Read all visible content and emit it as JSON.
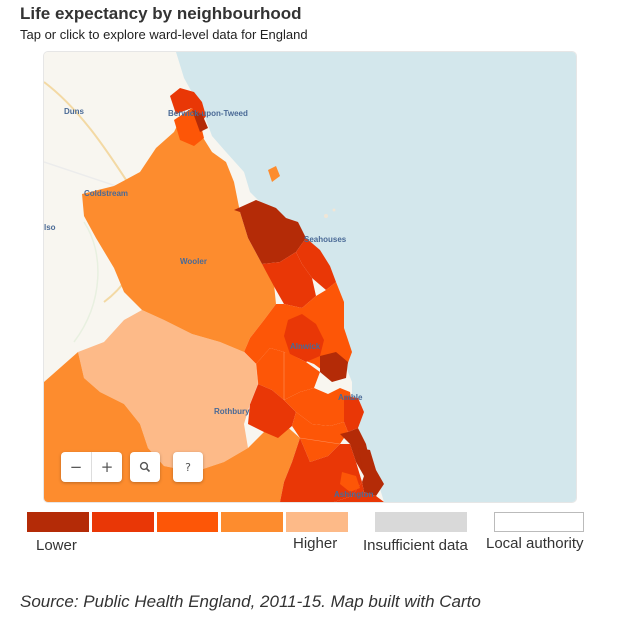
{
  "header": {
    "title": "Life expectancy by neighbourhood",
    "subtitle": "Tap or click to explore ward-level data for England"
  },
  "map": {
    "places": {
      "duns": "Duns",
      "berwick": "Berwick-upon-Tweed",
      "coldstream": "Coldstream",
      "kelso": "lso",
      "seahouses": "Seahouses",
      "wooler": "Wooler",
      "alnwick": "Alnwick",
      "rothbury": "Rothbury",
      "amble": "Amble",
      "ashington": "Ashington"
    },
    "controls": {
      "zoom_out": "−",
      "zoom_in": "+",
      "search_icon": "search-icon",
      "help": "?"
    },
    "colors": {
      "sea": "#d3e7ec",
      "land": "#f8f6f0",
      "darkest": "#b42b07",
      "dark": "#e93706",
      "mid": "#fd5607",
      "light": "#fd8c2e",
      "lightest": "#fdba88"
    }
  },
  "legend": {
    "lower": "Lower",
    "higher": "Higher",
    "insufficient": "Insufficient data",
    "local_authority": "Local authority",
    "scale_colors": [
      "#b42b07",
      "#e93706",
      "#fd5607",
      "#fd8c2e",
      "#fdba88"
    ],
    "insufficient_color": "#d9d9d9",
    "local_authority_color": "#ffffff"
  },
  "source": "Source: Public Health England, 2011-15. Map built with Carto"
}
